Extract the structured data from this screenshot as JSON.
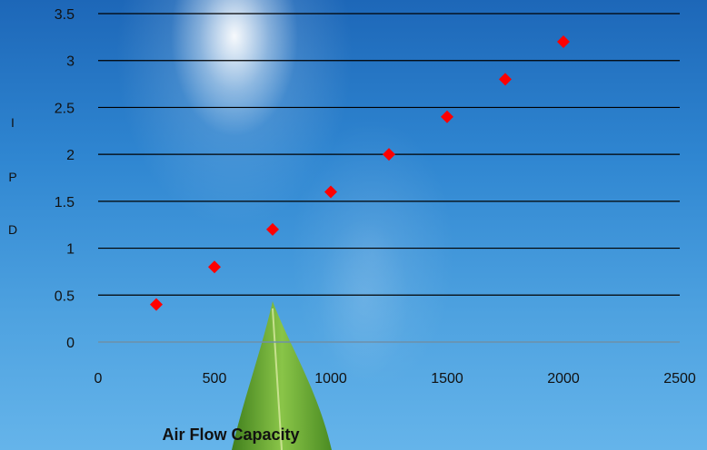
{
  "chart_data": {
    "type": "scatter",
    "x": [
      250,
      500,
      750,
      1000,
      1250,
      1500,
      1750,
      2000
    ],
    "y": [
      0.4,
      0.8,
      1.2,
      1.6,
      2.0,
      2.4,
      2.8,
      3.2
    ],
    "xlim": [
      0,
      2500
    ],
    "ylim": [
      0,
      3.5
    ],
    "xticks": [
      "0",
      "500",
      "1000",
      "1500",
      "2000",
      "2500"
    ],
    "yticks": [
      "0",
      "0.5",
      "1",
      "1.5",
      "2",
      "2.5",
      "3",
      "3.5"
    ],
    "xlabel": "Air Flow Capacity",
    "ylabel_letters": [
      "I",
      "P",
      "D"
    ],
    "grid": "horizontal",
    "legend": "none",
    "marker": "diamond",
    "marker_color": "#ff0000"
  }
}
